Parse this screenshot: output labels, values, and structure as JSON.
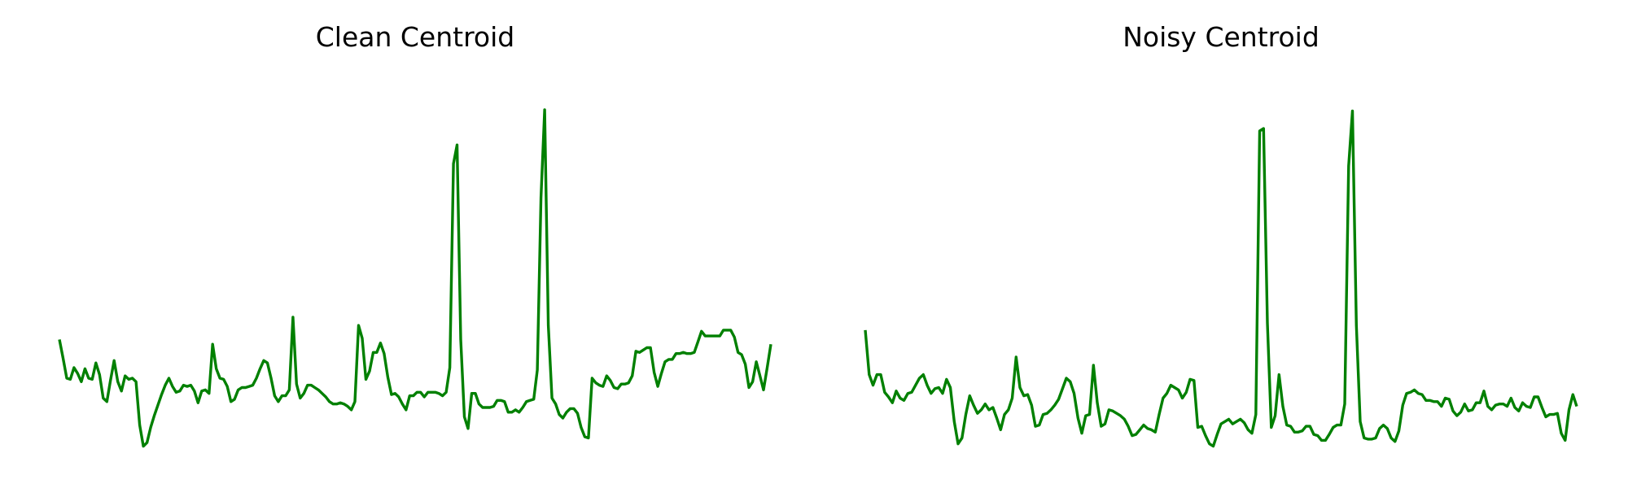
{
  "chart_data": [
    {
      "type": "line",
      "title": "Clean Centroid",
      "xlabel": "",
      "ylabel": "",
      "axes_visible": false,
      "grid": false,
      "x_range": [
        0,
        199
      ],
      "ylim": [
        -0.9,
        2.25
      ],
      "series": [
        {
          "color": "#008000",
          "values": [
            0.02,
            -0.14,
            -0.31,
            -0.32,
            -0.22,
            -0.27,
            -0.34,
            -0.23,
            -0.31,
            -0.32,
            -0.18,
            -0.28,
            -0.48,
            -0.51,
            -0.33,
            -0.16,
            -0.34,
            -0.42,
            -0.29,
            -0.32,
            -0.31,
            -0.34,
            -0.71,
            -0.89,
            -0.86,
            -0.73,
            -0.63,
            -0.54,
            -0.45,
            -0.37,
            -0.31,
            -0.38,
            -0.43,
            -0.42,
            -0.37,
            -0.38,
            -0.37,
            -0.42,
            -0.52,
            -0.42,
            -0.41,
            -0.44,
            -0.02,
            -0.23,
            -0.31,
            -0.32,
            -0.38,
            -0.51,
            -0.49,
            -0.41,
            -0.39,
            -0.39,
            -0.38,
            -0.37,
            -0.31,
            -0.23,
            -0.16,
            -0.18,
            -0.31,
            -0.46,
            -0.51,
            -0.46,
            -0.46,
            -0.41,
            0.21,
            -0.36,
            -0.48,
            -0.44,
            -0.37,
            -0.37,
            -0.39,
            -0.41,
            -0.44,
            -0.47,
            -0.51,
            -0.53,
            -0.53,
            -0.52,
            -0.53,
            -0.55,
            -0.58,
            -0.51,
            0.14,
            0.03,
            -0.32,
            -0.25,
            -0.09,
            -0.09,
            -0.01,
            -0.1,
            -0.3,
            -0.45,
            -0.44,
            -0.47,
            -0.53,
            -0.58,
            -0.46,
            -0.46,
            -0.43,
            -0.43,
            -0.47,
            -0.43,
            -0.43,
            -0.43,
            -0.44,
            -0.46,
            -0.43,
            -0.22,
            1.52,
            1.68,
            0.02,
            -0.64,
            -0.74,
            -0.44,
            -0.44,
            -0.53,
            -0.56,
            -0.56,
            -0.56,
            -0.55,
            -0.5,
            -0.5,
            -0.51,
            -0.6,
            -0.6,
            -0.58,
            -0.6,
            -0.56,
            -0.51,
            -0.5,
            -0.49,
            -0.24,
            1.23,
            1.98,
            0.14,
            -0.48,
            -0.53,
            -0.62,
            -0.65,
            -0.6,
            -0.57,
            -0.57,
            -0.61,
            -0.73,
            -0.81,
            -0.82,
            -0.31,
            -0.35,
            -0.37,
            -0.38,
            -0.29,
            -0.33,
            -0.39,
            -0.4,
            -0.36,
            -0.36,
            -0.35,
            -0.29,
            -0.08,
            -0.09,
            -0.07,
            -0.05,
            -0.05,
            -0.26,
            -0.38,
            -0.27,
            -0.17,
            -0.15,
            -0.15,
            -0.1,
            -0.1,
            -0.09,
            -0.1,
            -0.1,
            -0.09,
            0.0,
            0.09,
            0.05,
            0.05,
            0.05,
            0.05,
            0.05,
            0.1,
            0.1,
            0.1,
            0.04,
            -0.09,
            -0.11,
            -0.19,
            -0.39,
            -0.34,
            -0.17,
            -0.29,
            -0.41,
            -0.22,
            -0.02
          ]
        }
      ]
    },
    {
      "type": "line",
      "title": "Noisy Centroid",
      "xlabel": "",
      "ylabel": "",
      "axes_visible": false,
      "grid": false,
      "x_range": [
        0,
        199
      ],
      "ylim": [
        -0.9,
        2.25
      ],
      "series": [
        {
          "color": "#008000",
          "values": [
            0.1,
            -0.28,
            -0.37,
            -0.28,
            -0.28,
            -0.43,
            -0.47,
            -0.52,
            -0.42,
            -0.48,
            -0.5,
            -0.44,
            -0.43,
            -0.37,
            -0.31,
            -0.28,
            -0.37,
            -0.44,
            -0.4,
            -0.39,
            -0.44,
            -0.32,
            -0.39,
            -0.68,
            -0.87,
            -0.82,
            -0.62,
            -0.46,
            -0.54,
            -0.61,
            -0.58,
            -0.53,
            -0.58,
            -0.56,
            -0.65,
            -0.75,
            -0.62,
            -0.58,
            -0.48,
            -0.13,
            -0.39,
            -0.46,
            -0.45,
            -0.54,
            -0.72,
            -0.71,
            -0.62,
            -0.61,
            -0.58,
            -0.54,
            -0.49,
            -0.4,
            -0.31,
            -0.34,
            -0.44,
            -0.65,
            -0.78,
            -0.63,
            -0.62,
            -0.2,
            -0.52,
            -0.72,
            -0.7,
            -0.58,
            -0.59,
            -0.61,
            -0.63,
            -0.66,
            -0.72,
            -0.8,
            -0.79,
            -0.75,
            -0.71,
            -0.74,
            -0.75,
            -0.77,
            -0.62,
            -0.48,
            -0.44,
            -0.37,
            -0.39,
            -0.41,
            -0.48,
            -0.43,
            -0.32,
            -0.33,
            -0.73,
            -0.72,
            -0.8,
            -0.87,
            -0.89,
            -0.79,
            -0.7,
            -0.68,
            -0.66,
            -0.7,
            -0.68,
            -0.66,
            -0.69,
            -0.75,
            -0.78,
            -0.62,
            1.8,
            1.82,
            0.16,
            -0.73,
            -0.63,
            -0.28,
            -0.55,
            -0.71,
            -0.72,
            -0.77,
            -0.77,
            -0.76,
            -0.72,
            -0.72,
            -0.79,
            -0.8,
            -0.84,
            -0.84,
            -0.79,
            -0.73,
            -0.71,
            -0.71,
            -0.53,
            1.5,
            1.97,
            0.14,
            -0.68,
            -0.82,
            -0.83,
            -0.83,
            -0.82,
            -0.74,
            -0.71,
            -0.74,
            -0.82,
            -0.85,
            -0.76,
            -0.54,
            -0.44,
            -0.43,
            -0.41,
            -0.44,
            -0.45,
            -0.5,
            -0.5,
            -0.51,
            -0.51,
            -0.55,
            -0.48,
            -0.49,
            -0.59,
            -0.63,
            -0.6,
            -0.53,
            -0.59,
            -0.58,
            -0.52,
            -0.52,
            -0.42,
            -0.55,
            -0.58,
            -0.54,
            -0.53,
            -0.53,
            -0.55,
            -0.48,
            -0.56,
            -0.59,
            -0.52,
            -0.55,
            -0.56,
            -0.47,
            -0.47,
            -0.56,
            -0.64,
            -0.62,
            -0.62,
            -0.61,
            -0.78,
            -0.84,
            -0.58,
            -0.45,
            -0.55
          ]
        }
      ]
    }
  ]
}
